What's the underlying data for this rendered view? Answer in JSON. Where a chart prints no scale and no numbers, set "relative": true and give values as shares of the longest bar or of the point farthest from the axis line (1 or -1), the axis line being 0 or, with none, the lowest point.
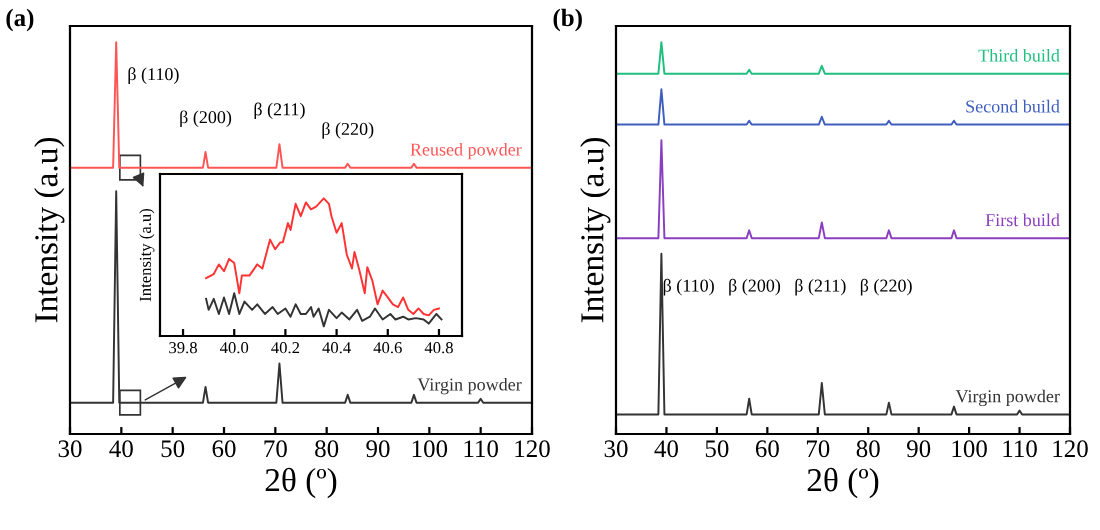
{
  "chart_data": [
    {
      "type": "line",
      "title": "(a)",
      "xlabel": "2θ (º)",
      "ylabel": "Intensity (a.u)",
      "relative": true,
      "xlim": [
        30,
        120
      ],
      "xticks": [
        30,
        40,
        50,
        60,
        70,
        80,
        90,
        100,
        110,
        120
      ],
      "series": [
        {
          "name": "Virgin powder",
          "color": "#333333",
          "x": [
            30,
            35,
            38.4,
            39,
            39.6,
            42,
            55.9,
            56.4,
            56.9,
            70.2,
            70.8,
            71.4,
            83.6,
            84.1,
            84.6,
            96.5,
            97,
            97.5,
            109.5,
            110,
            110.5,
            120
          ],
          "values": [
            0.08,
            0.08,
            0.08,
            0.62,
            0.08,
            0.08,
            0.08,
            0.12,
            0.08,
            0.08,
            0.18,
            0.08,
            0.08,
            0.1,
            0.08,
            0.08,
            0.1,
            0.08,
            0.08,
            0.09,
            0.08,
            0.08
          ]
        },
        {
          "name": "Reused powder",
          "color": "#ff5555",
          "x": [
            30,
            35,
            38.4,
            39,
            39.6,
            42,
            55.9,
            56.4,
            56.9,
            70.2,
            70.8,
            71.4,
            83.6,
            84.1,
            84.6,
            96.5,
            97,
            97.5,
            109.5,
            110,
            110.5,
            120
          ],
          "values": [
            0.68,
            0.68,
            0.68,
            1.0,
            0.68,
            0.68,
            0.68,
            0.72,
            0.68,
            0.68,
            0.74,
            0.68,
            0.68,
            0.69,
            0.68,
            0.68,
            0.69,
            0.68,
            0.68,
            0.68,
            0.68,
            0.68
          ]
        }
      ],
      "annotations": [
        {
          "text": "β (110)",
          "x": 39,
          "y": 1.0
        },
        {
          "text": "β (200)",
          "x": 56.4,
          "y": 0.72
        },
        {
          "text": "β (211)",
          "x": 70.8,
          "y": 0.74
        },
        {
          "text": "β (220)",
          "x": 84.1,
          "y": 0.69
        }
      ]
    },
    {
      "type": "line",
      "ylabel": "Intensity (a.u)",
      "relative": true,
      "xlim": [
        39.71,
        40.89
      ],
      "xticks": [
        39.8,
        {
          "value": 40.0,
          "label": "40.0"
        },
        40.2,
        40.4,
        40.6,
        40.8
      ],
      "series": [
        {
          "color": "#ff3333",
          "x": [
            39.89,
            39.92,
            39.94,
            39.96,
            39.98,
            40.0,
            40.02,
            40.03,
            40.06,
            40.09,
            40.11,
            40.14,
            40.16,
            40.18,
            40.19,
            40.21,
            40.22,
            40.24,
            40.26,
            40.28,
            40.3,
            40.32,
            40.35,
            40.37,
            40.38,
            40.4,
            40.42,
            40.44,
            40.46,
            40.47,
            40.49,
            40.51,
            40.52,
            40.54,
            40.56,
            40.58,
            40.6,
            40.62,
            40.64,
            40.66,
            40.68,
            40.7,
            40.72,
            40.74,
            40.76,
            40.78,
            40.8
          ],
          "values": [
            0.42,
            0.45,
            0.52,
            0.47,
            0.56,
            0.53,
            0.31,
            0.44,
            0.44,
            0.52,
            0.49,
            0.7,
            0.63,
            0.68,
            0.68,
            0.82,
            0.77,
            0.96,
            0.87,
            0.97,
            0.92,
            0.94,
            1.0,
            0.96,
            0.87,
            0.75,
            0.82,
            0.59,
            0.49,
            0.61,
            0.47,
            0.31,
            0.5,
            0.4,
            0.23,
            0.33,
            0.28,
            0.23,
            0.21,
            0.28,
            0.19,
            0.16,
            0.2,
            0.16,
            0.15,
            0.19,
            0.2
          ]
        },
        {
          "color": "#333333",
          "x": [
            39.89,
            39.9,
            39.92,
            39.94,
            39.96,
            39.98,
            40.0,
            40.02,
            40.04,
            40.07,
            40.09,
            40.12,
            40.15,
            40.17,
            40.2,
            40.22,
            40.24,
            40.26,
            40.28,
            40.3,
            40.31,
            40.33,
            40.35,
            40.37,
            40.4,
            40.42,
            40.45,
            40.48,
            40.5,
            40.53,
            40.55,
            40.58,
            40.61,
            40.63,
            40.66,
            40.68,
            40.71,
            40.74,
            40.76,
            40.79,
            40.81
          ],
          "values": [
            0.27,
            0.19,
            0.27,
            0.16,
            0.28,
            0.16,
            0.31,
            0.16,
            0.25,
            0.19,
            0.23,
            0.16,
            0.21,
            0.16,
            0.2,
            0.14,
            0.23,
            0.16,
            0.16,
            0.21,
            0.14,
            0.2,
            0.07,
            0.19,
            0.13,
            0.17,
            0.12,
            0.19,
            0.11,
            0.14,
            0.2,
            0.12,
            0.16,
            0.12,
            0.14,
            0.12,
            0.13,
            0.12,
            0.09,
            0.16,
            0.12
          ]
        }
      ]
    },
    {
      "type": "line",
      "title": "(b)",
      "xlabel": "2θ (º)",
      "ylabel": "Intensity (a.u)",
      "relative": true,
      "xlim": [
        30,
        120
      ],
      "xticks": [
        30,
        40,
        50,
        60,
        70,
        80,
        90,
        100,
        110,
        120
      ],
      "series": [
        {
          "name": "Virgin powder",
          "color": "#333333",
          "x": [
            30,
            35,
            38.4,
            39,
            39.6,
            42,
            55.9,
            56.4,
            56.9,
            70.2,
            70.8,
            71.4,
            83.6,
            84.1,
            84.6,
            96.5,
            97,
            97.5,
            109.5,
            110,
            110.5,
            120
          ],
          "values": [
            0.05,
            0.05,
            0.05,
            0.46,
            0.05,
            0.05,
            0.05,
            0.09,
            0.05,
            0.05,
            0.13,
            0.05,
            0.05,
            0.08,
            0.05,
            0.05,
            0.07,
            0.05,
            0.05,
            0.06,
            0.05,
            0.05
          ]
        },
        {
          "name": "First build",
          "color": "#8a3fc0",
          "x": [
            30,
            35,
            38.4,
            39,
            39.6,
            42,
            55.9,
            56.4,
            56.9,
            70.2,
            70.8,
            71.4,
            83.6,
            84.1,
            84.6,
            96.5,
            97,
            97.5,
            109.5,
            110,
            110.5,
            120
          ],
          "values": [
            0.5,
            0.5,
            0.5,
            0.75,
            0.5,
            0.5,
            0.5,
            0.52,
            0.5,
            0.5,
            0.54,
            0.5,
            0.5,
            0.52,
            0.5,
            0.5,
            0.52,
            0.5,
            0.5,
            0.5,
            0.5,
            0.5
          ]
        },
        {
          "name": "Second build",
          "color": "#3f5fbf",
          "x": [
            30,
            35,
            38.4,
            39,
            39.6,
            42,
            55.9,
            56.4,
            56.9,
            70.2,
            70.8,
            71.4,
            83.6,
            84.1,
            84.6,
            96.5,
            97,
            97.5,
            120
          ],
          "values": [
            0.79,
            0.79,
            0.79,
            0.88,
            0.79,
            0.79,
            0.79,
            0.8,
            0.79,
            0.79,
            0.81,
            0.79,
            0.79,
            0.8,
            0.79,
            0.79,
            0.8,
            0.79,
            0.79
          ]
        },
        {
          "name": "Third build",
          "color": "#1fbf7f",
          "x": [
            30,
            35,
            38.4,
            39,
            39.6,
            42,
            55.9,
            56.4,
            56.9,
            70.2,
            70.8,
            71.4,
            83.6,
            84.1,
            84.6,
            96.5,
            97,
            97.5,
            120
          ],
          "values": [
            0.92,
            0.92,
            0.92,
            1.0,
            0.92,
            0.92,
            0.92,
            0.93,
            0.92,
            0.92,
            0.94,
            0.92,
            0.92,
            0.92,
            0.92,
            0.92,
            0.92,
            0.92,
            0.92
          ]
        }
      ],
      "annotations": [
        "β (110)",
        "β (200)",
        "β (211)",
        "β (220)"
      ]
    }
  ]
}
